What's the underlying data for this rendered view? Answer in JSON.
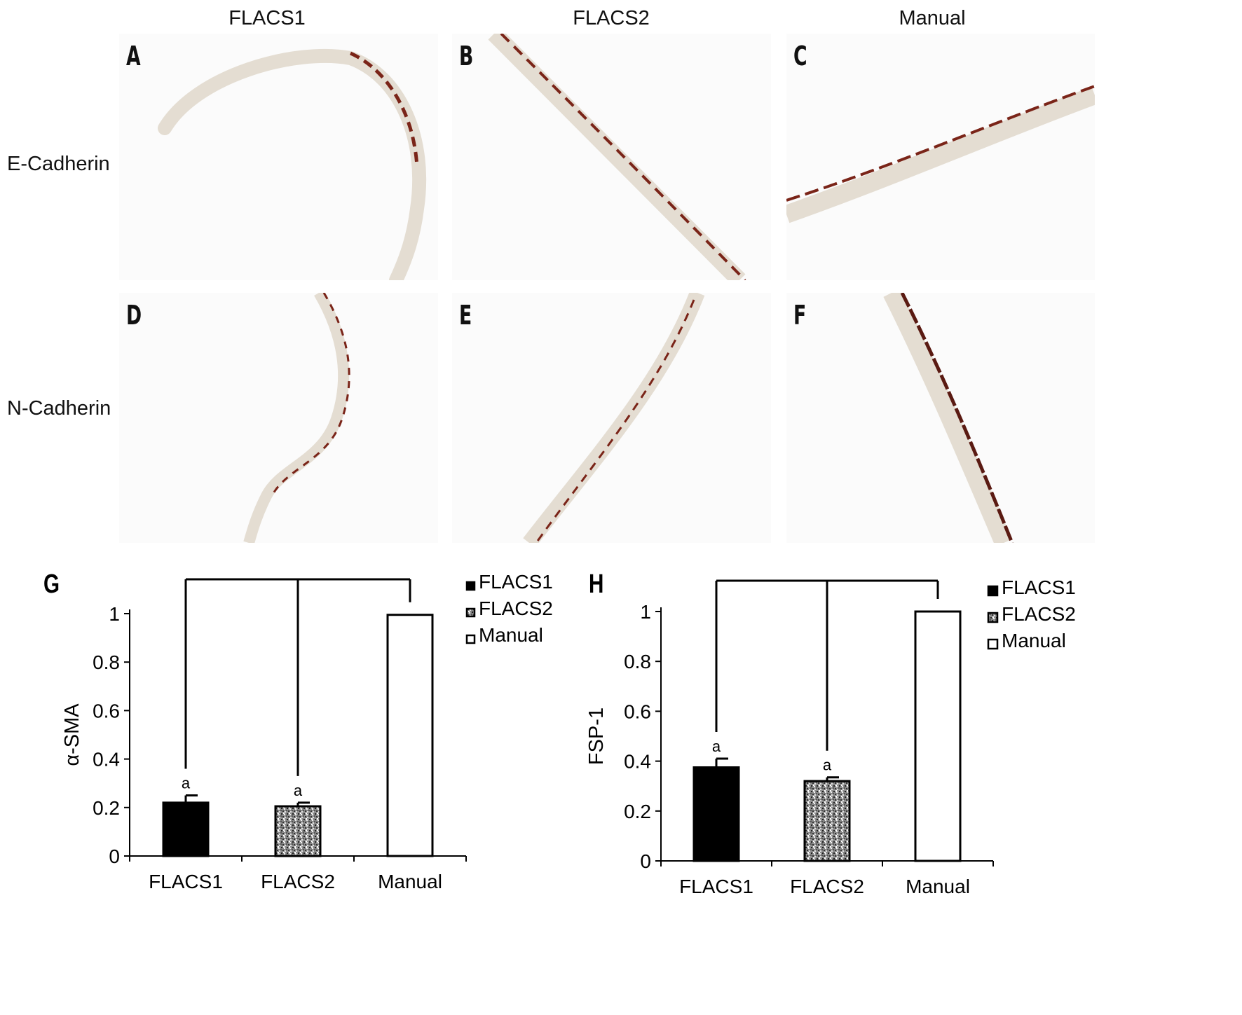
{
  "columns": [
    "FLACS1",
    "FLACS2",
    "Manual"
  ],
  "rows": [
    "E-Cadherin",
    "N-Cadherin"
  ],
  "panels": [
    "A",
    "B",
    "C",
    "D",
    "E",
    "F"
  ],
  "colors": {
    "stain": "#7a2418",
    "membrane": "#d9d2c8",
    "bar_black": "#000000",
    "bar_white": "#ffffff"
  },
  "chart_data": [
    {
      "panel": "G",
      "type": "bar",
      "categories": [
        "FLACS1",
        "FLACS2",
        "Manual"
      ],
      "values": [
        0.22,
        0.205,
        0.995
      ],
      "errors": [
        0.03,
        0.015,
        0
      ],
      "annotations": [
        "a",
        "a",
        ""
      ],
      "ylabel": "α-SMA",
      "ylim": [
        0,
        1
      ],
      "yticks": [
        "0",
        "0.2",
        "0.4",
        "0.6",
        "0.8",
        "1"
      ],
      "legend": [
        "FLACS1",
        "FLACS2",
        "Manual"
      ],
      "legend_position": "top-right"
    },
    {
      "panel": "H",
      "type": "bar",
      "categories": [
        "FLACS1",
        "FLACS2",
        "Manual"
      ],
      "values": [
        0.375,
        0.32,
        1.0
      ],
      "errors": [
        0.035,
        0.015,
        0
      ],
      "annotations": [
        "a",
        "a",
        ""
      ],
      "ylabel": "FSP-1",
      "ylim": [
        0,
        1
      ],
      "yticks": [
        "0",
        "0.2",
        "0.4",
        "0.6",
        "0.8",
        "1"
      ],
      "legend": [
        "FLACS1",
        "FLACS2",
        "Manual"
      ],
      "legend_position": "top-right"
    }
  ]
}
